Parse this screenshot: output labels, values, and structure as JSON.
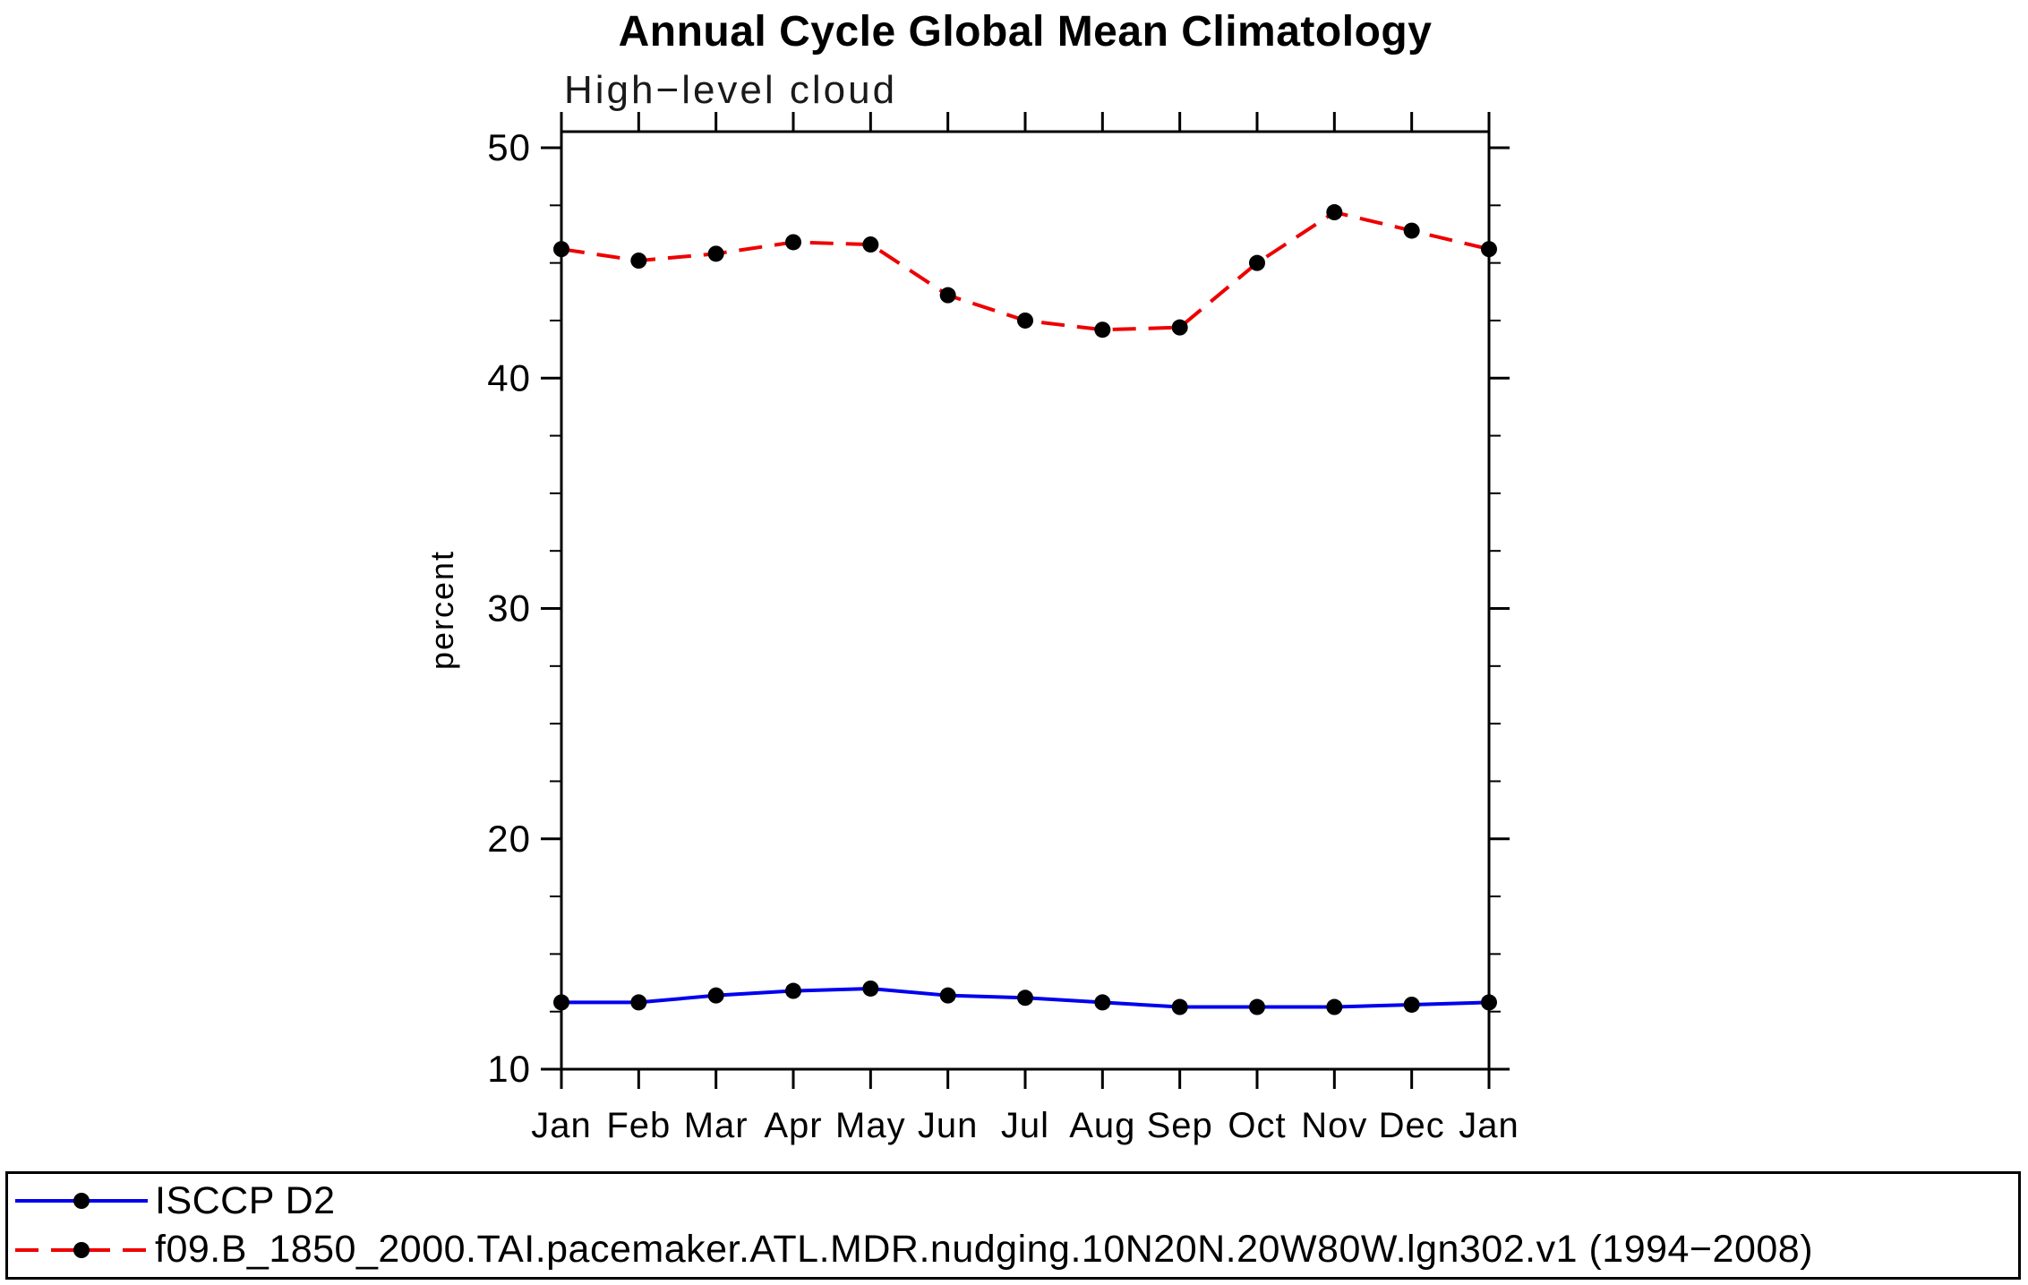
{
  "chart_data": {
    "type": "line",
    "title": "Annual Cycle Global Mean Climatology",
    "subtitle": "High−level cloud",
    "xlabel": "",
    "ylabel": "percent",
    "categories": [
      "Jan",
      "Feb",
      "Mar",
      "Apr",
      "May",
      "Jun",
      "Jul",
      "Aug",
      "Sep",
      "Oct",
      "Nov",
      "Dec",
      "Jan"
    ],
    "series": [
      {
        "name": "ISCCP D2",
        "color": "#0000ee",
        "line_style": "solid",
        "marker": "circle",
        "values": [
          12.9,
          12.9,
          13.2,
          13.4,
          13.5,
          13.2,
          13.1,
          12.9,
          12.7,
          12.7,
          12.7,
          12.8,
          12.9
        ]
      },
      {
        "name": "f09.B_1850_2000.TAI.pacemaker.ATL.MDR.nudging.10N20N.20W80W.lgn302.v1 (1994−2008)",
        "color": "#ee0000",
        "line_style": "dashed",
        "marker": "circle",
        "values": [
          45.6,
          45.1,
          45.4,
          45.9,
          45.8,
          43.6,
          42.5,
          42.1,
          42.2,
          45.0,
          47.2,
          46.4,
          45.6
        ]
      }
    ],
    "ylim": [
      10,
      50.7
    ],
    "yticks": [
      10,
      20,
      30,
      40,
      50
    ],
    "minor_tick_step": 2.5,
    "marker_color": "#000000",
    "axis_color": "#000000",
    "grid": false,
    "legend_position": "bottom-left-box"
  }
}
